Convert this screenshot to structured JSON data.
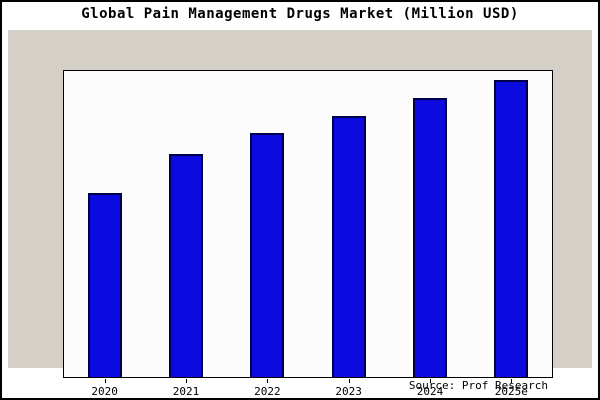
{
  "footer": {
    "source": "Source: Prof Research"
  },
  "chart_data": {
    "type": "bar",
    "title": "Global Pain Management Drugs Market (Million USD)",
    "categories": [
      "2020",
      "2021",
      "2022",
      "2023",
      "2024",
      "2025e"
    ],
    "values": [
      62,
      75,
      82,
      88,
      94,
      100
    ],
    "xlabel": "",
    "ylabel": "",
    "ylim": [
      0,
      103
    ],
    "grid": false,
    "legend": false,
    "bar_color": "#0b0be0",
    "bar_border_color": "#00004a",
    "panel_background": "#d4d0c8",
    "plot_background": "#fcfcfc"
  }
}
